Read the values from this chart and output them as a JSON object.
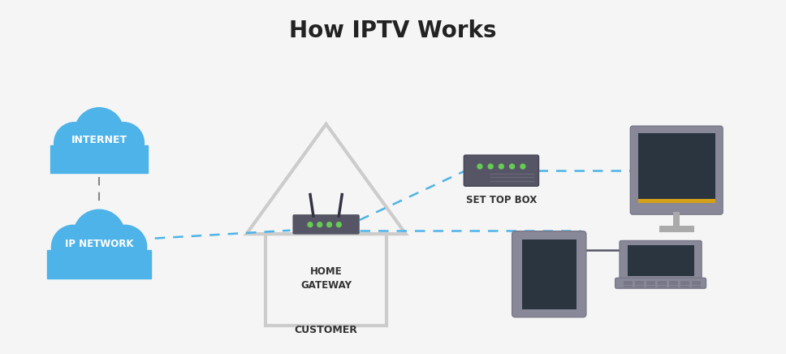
{
  "title": "How IPTV Works",
  "title_fontsize": 20,
  "title_fontweight": "bold",
  "bg_color": "#f5f5f5",
  "cloud_color": "#4eb3e8",
  "cloud_text_color": "#ffffff",
  "cloud1_label": "INTERNET",
  "cloud2_label": "IP NETWORK",
  "house_color": "#cccccc",
  "router_body_color": "#555566",
  "router_green_color": "#66cc55",
  "stb_body_color": "#555566",
  "tv_screen_color": "#2a3540",
  "tv_stand_color": "#aaaaaa",
  "tv_frame_color": "#888899",
  "tablet_color": "#888899",
  "tablet_screen_color": "#2a3540",
  "laptop_color": "#888899",
  "laptop_screen_color": "#2a3540",
  "dash_color": "#4eb3e8",
  "line_color": "#555566",
  "label_color": "#333333",
  "gateway_label": "HOME\nGATEWAY",
  "customer_label": "CUSTOMER",
  "stb_label": "SET TOP BOX",
  "figsize": [
    9.68,
    4.36
  ],
  "dpi": 100
}
